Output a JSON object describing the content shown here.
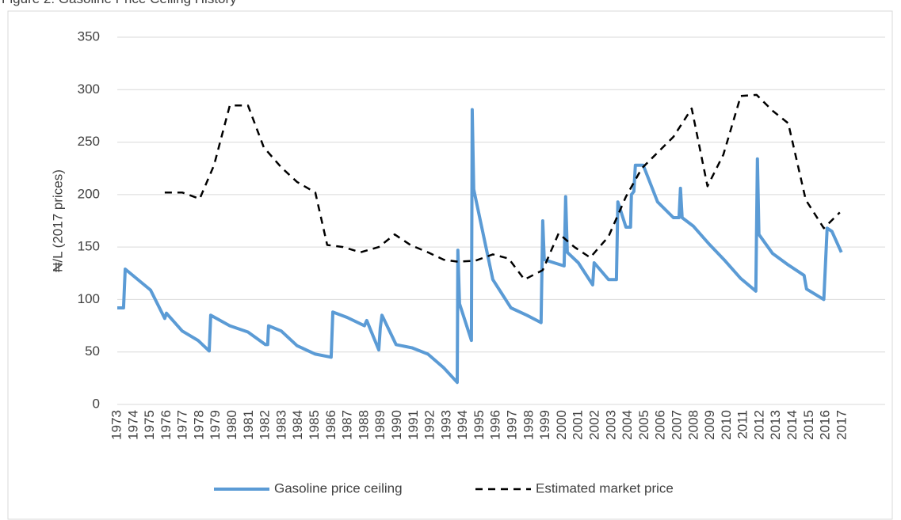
{
  "chart_data": {
    "type": "line",
    "title": "Figure 2: Gasoline Price Ceiling History",
    "y_label": "₦/L (2017 prices)",
    "xlim": [
      1973,
      2019.6
    ],
    "xticks": [
      1973,
      1974,
      1975,
      1976,
      1977,
      1978,
      1979,
      1980,
      1981,
      1982,
      1983,
      1984,
      1985,
      1986,
      1987,
      1988,
      1989,
      1990,
      1991,
      1992,
      1993,
      1994,
      1995,
      1996,
      1997,
      1998,
      1999,
      2000,
      2001,
      2002,
      2003,
      2004,
      2005,
      2006,
      2007,
      2008,
      2009,
      2010,
      2011,
      2012,
      2013,
      2014,
      2015,
      2016,
      2017
    ],
    "ylim": [
      0,
      350
    ],
    "yticks": [
      0,
      50,
      100,
      150,
      200,
      250,
      300,
      350
    ],
    "grid": true,
    "legend": "bottom",
    "series": [
      {
        "name": "Gasoline price ceiling",
        "color": "#5b9bd5",
        "line_style": "solid",
        "x": [
          1973.0,
          1973.38,
          1973.48,
          1975.02,
          1975.88,
          1975.98,
          1976.94,
          1977.9,
          1978.58,
          1978.67,
          1979.83,
          1980.93,
          1981.99,
          1982.13,
          1982.18,
          1982.95,
          1983.91,
          1985.02,
          1985.98,
          1986.08,
          1986.94,
          1988.0,
          1988.14,
          1988.87,
          1988.96,
          1989.06,
          1989.92,
          1990.88,
          1991.85,
          1992.81,
          1993.63,
          1993.67,
          1993.77,
          1994.49,
          1994.54,
          1994.63,
          1995.79,
          1996.89,
          1997.86,
          1998.72,
          1998.82,
          1998.91,
          2000.12,
          2000.21,
          2000.31,
          2000.98,
          2001.85,
          2001.94,
          2002.81,
          2003.29,
          2003.38,
          2003.87,
          2004.15,
          2004.2,
          2004.35,
          2004.44,
          2004.92,
          2005.79,
          2006.75,
          2007.09,
          2007.18,
          2007.28,
          2007.95,
          2008.91,
          2009.88,
          2010.84,
          2011.75,
          2011.85,
          2011.94,
          2012.76,
          2013.72,
          2014.68,
          2014.83,
          2015.88,
          2016.08,
          2016.37,
          2016.94
        ],
        "values": [
          92,
          92,
          129,
          109,
          82,
          87,
          70,
          61,
          51,
          85,
          75,
          69,
          57,
          57,
          75,
          70,
          56,
          48,
          45,
          88,
          83,
          75,
          80,
          52,
          73,
          85,
          57,
          54,
          48,
          35,
          21,
          147,
          96,
          61,
          281,
          205,
          119,
          92,
          85,
          78,
          175,
          138,
          132,
          198,
          145,
          135,
          114,
          135,
          119,
          119,
          193,
          169,
          169,
          200,
          203,
          228,
          228,
          193,
          178,
          178,
          206,
          178,
          170,
          153,
          137,
          120,
          108,
          234,
          162,
          144,
          133,
          123,
          110,
          100,
          168,
          165,
          145
        ]
      },
      {
        "name": "Estimated market price",
        "color": "#000000",
        "line_style": "dashed",
        "x": [
          1975.88,
          1976.94,
          1978.0,
          1978.87,
          1979.83,
          1980.93,
          1981.89,
          1982.95,
          1983.91,
          1985.02,
          1985.74,
          1986.7,
          1987.76,
          1988.87,
          1989.83,
          1990.79,
          1991.85,
          1992.81,
          1993.67,
          1994.73,
          1995.79,
          1996.75,
          1997.71,
          1998.82,
          1999.78,
          2000.74,
          2001.7,
          2002.81,
          2003.87,
          2004.83,
          2005.79,
          2006.75,
          2007.86,
          2008.82,
          2009.78,
          2010.84,
          2011.8,
          2012.76,
          2013.72,
          2014.78,
          2015.88,
          2016.85
        ],
        "values": [
          202,
          202,
          196,
          228,
          285,
          285,
          245,
          226,
          212,
          202,
          152,
          150,
          145,
          150,
          162,
          152,
          145,
          138,
          136,
          137,
          143,
          139,
          119,
          128,
          163,
          150,
          140,
          160,
          198,
          225,
          240,
          255,
          282,
          208,
          238,
          294,
          295,
          280,
          268,
          195,
          168,
          183
        ]
      }
    ]
  }
}
